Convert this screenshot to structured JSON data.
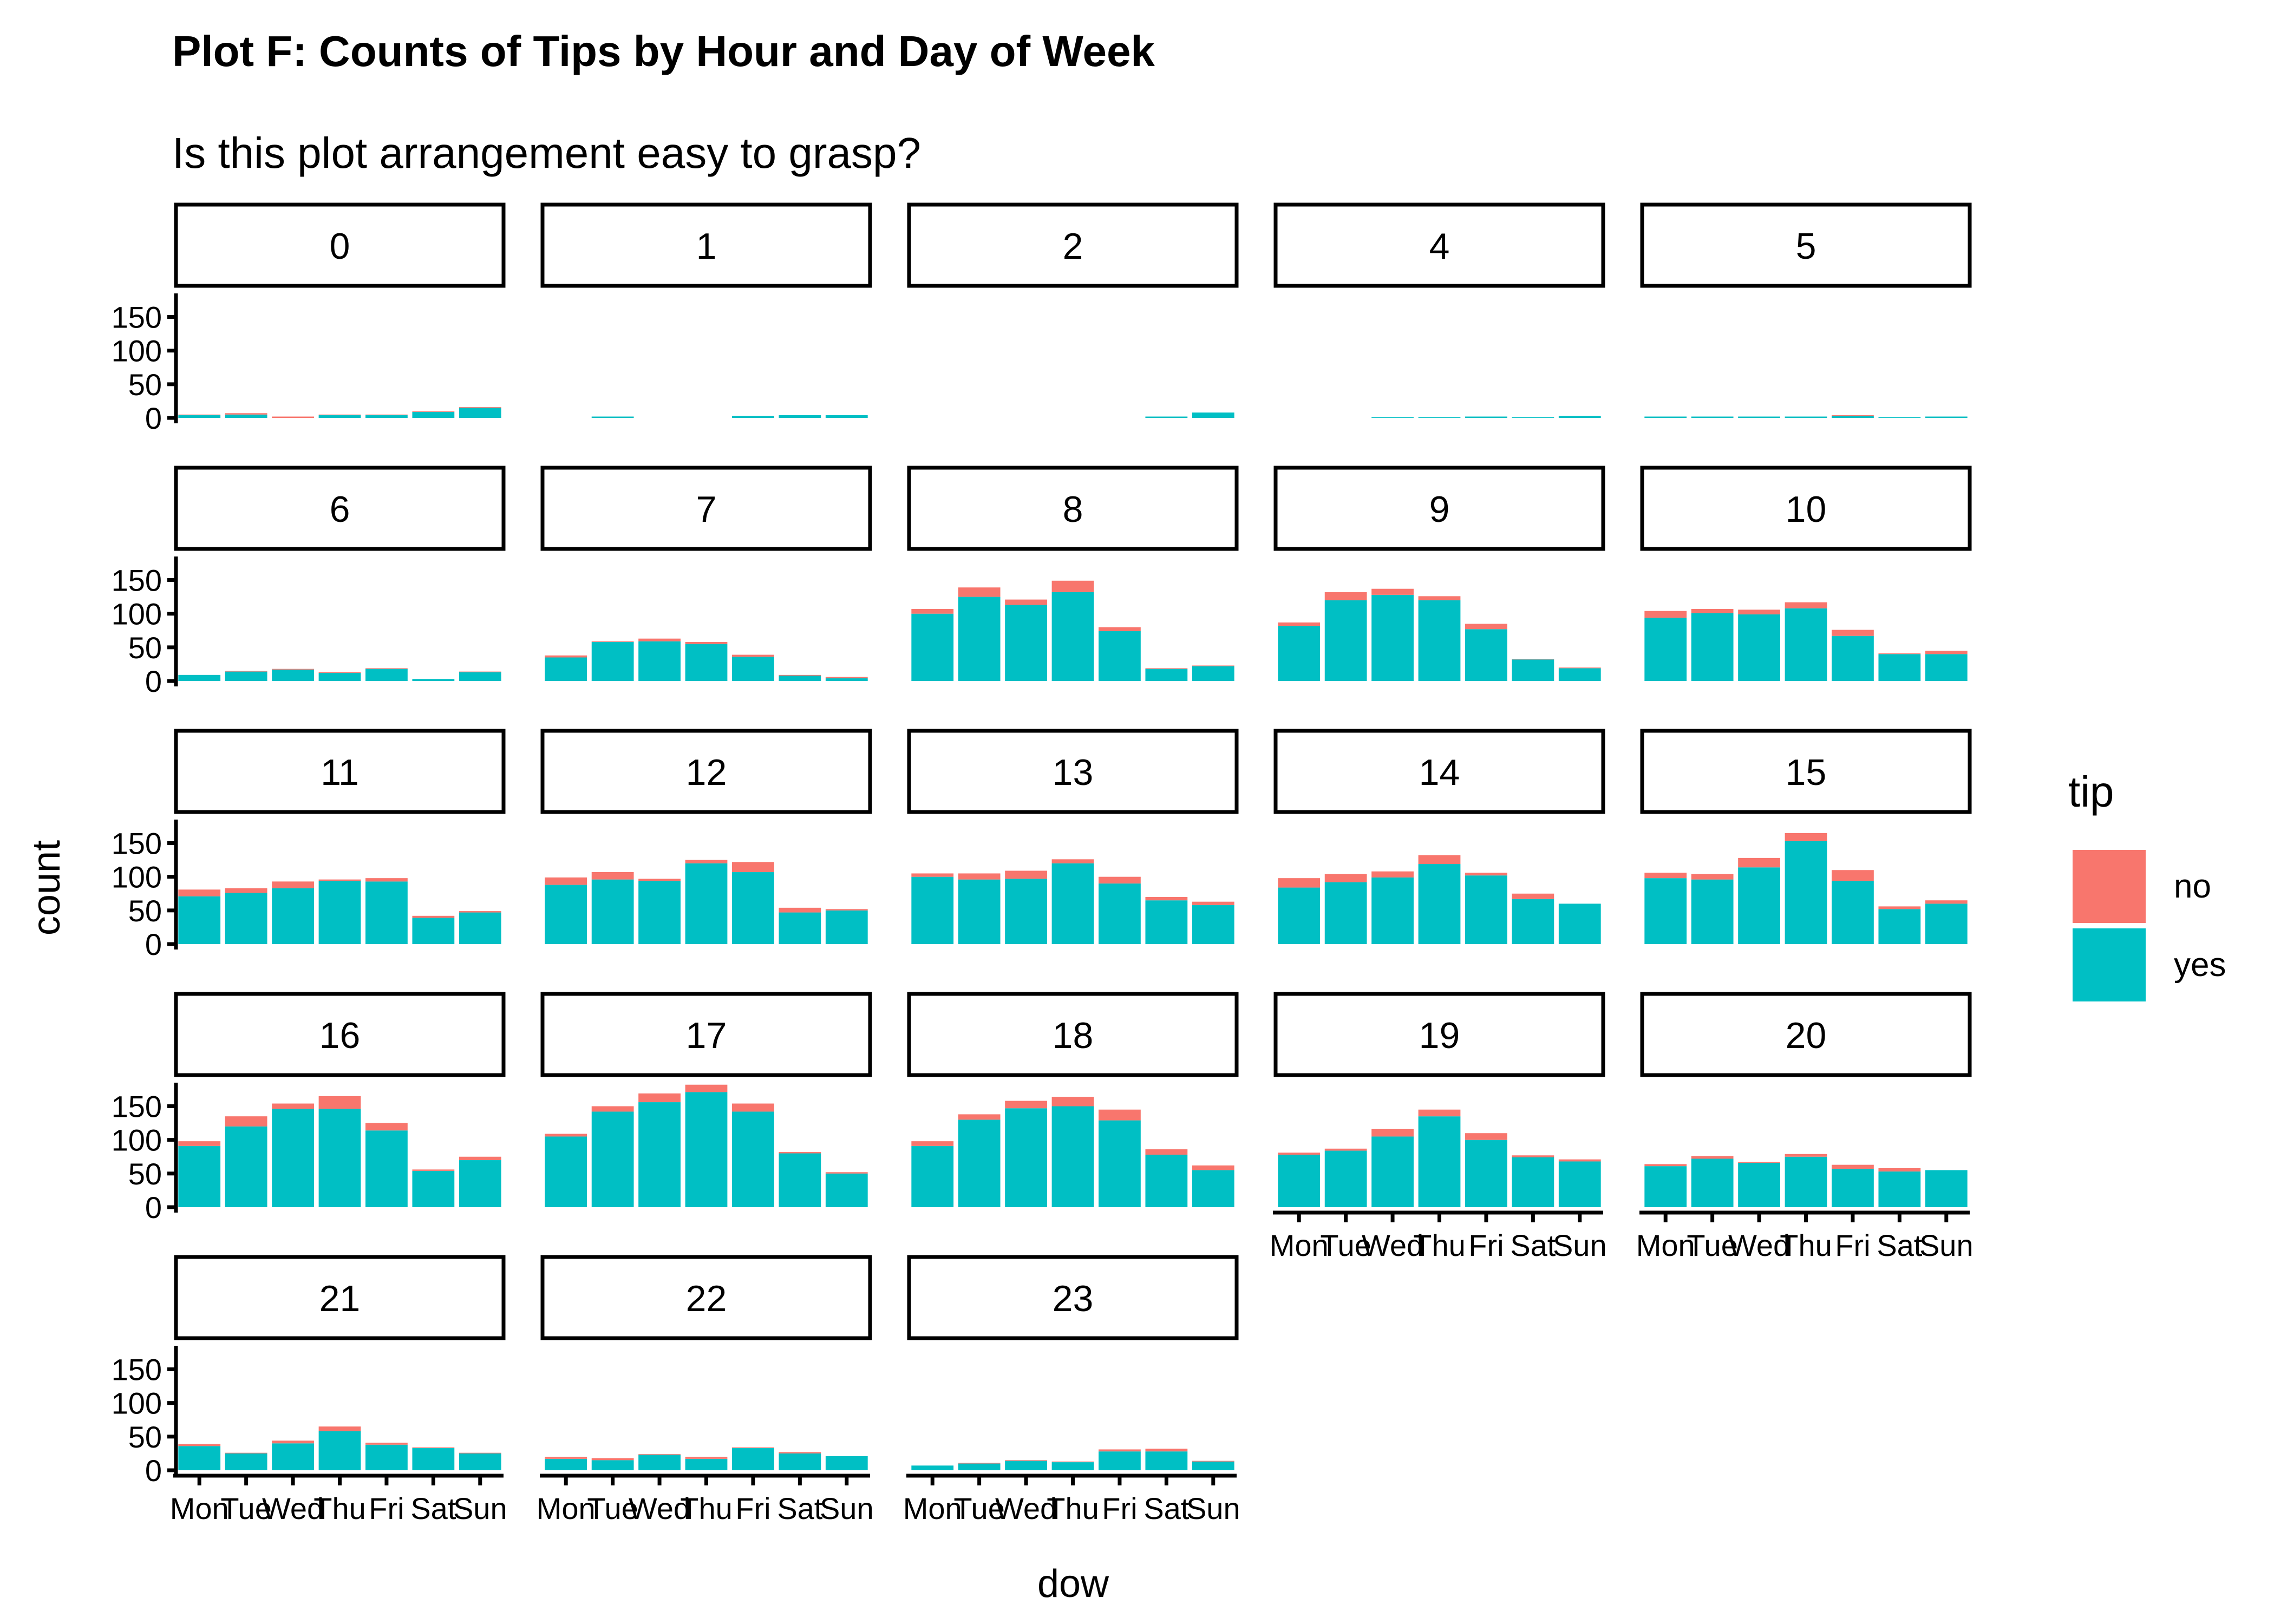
{
  "chart_data": {
    "type": "bar",
    "stacked": true,
    "title": "Plot F: Counts of Tips by Hour and Day of Week",
    "subtitle": "Is this plot arrangement easy to grasp?",
    "xlabel": "dow",
    "ylabel": "count",
    "categories": [
      "Mon",
      "Tue",
      "Wed",
      "Thu",
      "Fri",
      "Sat",
      "Sun"
    ],
    "yticks": [
      0,
      50,
      100,
      150
    ],
    "ylim": [
      0,
      185
    ],
    "grid": false,
    "legend": {
      "title": "tip",
      "position": "right",
      "entries": [
        {
          "name": "no",
          "color": "#F8766D"
        },
        {
          "name": "yes",
          "color": "#00BFC4"
        }
      ]
    },
    "panels": [
      {
        "label": "0",
        "yes": [
          4,
          5,
          0,
          4,
          4,
          9,
          15
        ],
        "no": [
          1,
          2,
          2,
          1,
          1,
          1,
          1
        ]
      },
      {
        "label": "1",
        "yes": [
          0,
          2,
          0,
          0,
          3,
          4,
          4
        ],
        "no": [
          0,
          0,
          0,
          0,
          0,
          0,
          0
        ]
      },
      {
        "label": "2",
        "yes": [
          0,
          0,
          0,
          0,
          0,
          2,
          8
        ],
        "no": [
          0,
          0,
          0,
          0,
          0,
          0,
          0
        ]
      },
      {
        "label": "4",
        "yes": [
          0,
          0,
          1,
          1,
          2,
          1,
          3
        ],
        "no": [
          0,
          0,
          0,
          0,
          0,
          0,
          0
        ]
      },
      {
        "label": "5",
        "yes": [
          2,
          2,
          2,
          2,
          3,
          1,
          2
        ],
        "no": [
          0,
          0,
          0,
          0,
          1,
          0,
          0
        ]
      },
      {
        "label": "6",
        "yes": [
          9,
          14,
          17,
          12,
          18,
          3,
          13
        ],
        "no": [
          0,
          1,
          1,
          1,
          1,
          0,
          1
        ]
      },
      {
        "label": "7",
        "yes": [
          35,
          58,
          59,
          55,
          36,
          8,
          4
        ],
        "no": [
          3,
          1,
          4,
          3,
          3,
          1,
          2
        ]
      },
      {
        "label": "8",
        "yes": [
          100,
          125,
          113,
          132,
          74,
          18,
          22
        ],
        "no": [
          7,
          14,
          8,
          17,
          6,
          1,
          1
        ]
      },
      {
        "label": "9",
        "yes": [
          82,
          120,
          128,
          120,
          77,
          32,
          19
        ],
        "no": [
          5,
          12,
          9,
          6,
          8,
          1,
          1
        ]
      },
      {
        "label": "10",
        "yes": [
          94,
          101,
          99,
          108,
          67,
          40,
          40
        ],
        "no": [
          10,
          6,
          7,
          9,
          9,
          1,
          5
        ]
      },
      {
        "label": "11",
        "yes": [
          71,
          76,
          83,
          94,
          93,
          39,
          47
        ],
        "no": [
          10,
          7,
          10,
          2,
          5,
          3,
          2
        ]
      },
      {
        "label": "12",
        "yes": [
          88,
          96,
          94,
          120,
          107,
          47,
          50
        ],
        "no": [
          11,
          11,
          3,
          5,
          15,
          7,
          2
        ]
      },
      {
        "label": "13",
        "yes": [
          100,
          96,
          97,
          120,
          90,
          65,
          58
        ],
        "no": [
          5,
          9,
          12,
          6,
          10,
          5,
          5
        ]
      },
      {
        "label": "14",
        "yes": [
          84,
          92,
          99,
          119,
          102,
          67,
          60
        ],
        "no": [
          14,
          12,
          9,
          13,
          4,
          8,
          0
        ]
      },
      {
        "label": "15",
        "yes": [
          98,
          96,
          114,
          153,
          94,
          52,
          60
        ],
        "no": [
          8,
          8,
          14,
          12,
          16,
          4,
          5
        ]
      },
      {
        "label": "16",
        "yes": [
          91,
          120,
          146,
          146,
          114,
          54,
          70
        ],
        "no": [
          7,
          15,
          8,
          19,
          11,
          2,
          5
        ]
      },
      {
        "label": "17",
        "yes": [
          105,
          142,
          156,
          171,
          142,
          80,
          50
        ],
        "no": [
          4,
          8,
          13,
          11,
          12,
          2,
          2
        ]
      },
      {
        "label": "18",
        "yes": [
          91,
          130,
          147,
          150,
          129,
          78,
          55
        ],
        "no": [
          7,
          8,
          11,
          14,
          16,
          8,
          7
        ]
      },
      {
        "label": "19",
        "yes": [
          78,
          84,
          105,
          135,
          100,
          74,
          68
        ],
        "no": [
          3,
          3,
          11,
          10,
          10,
          3,
          3
        ]
      },
      {
        "label": "20",
        "yes": [
          61,
          72,
          66,
          75,
          57,
          53,
          55
        ],
        "no": [
          3,
          4,
          1,
          4,
          6,
          5,
          0
        ]
      },
      {
        "label": "21",
        "yes": [
          36,
          25,
          40,
          58,
          38,
          33,
          25
        ],
        "no": [
          3,
          1,
          4,
          7,
          3,
          1,
          1
        ]
      },
      {
        "label": "22",
        "yes": [
          17,
          15,
          23,
          17,
          33,
          25,
          21
        ],
        "no": [
          3,
          3,
          1,
          3,
          1,
          2,
          0
        ]
      },
      {
        "label": "23",
        "yes": [
          7,
          10,
          14,
          12,
          28,
          28,
          13
        ],
        "no": [
          0,
          1,
          1,
          1,
          3,
          4,
          1
        ]
      }
    ]
  }
}
